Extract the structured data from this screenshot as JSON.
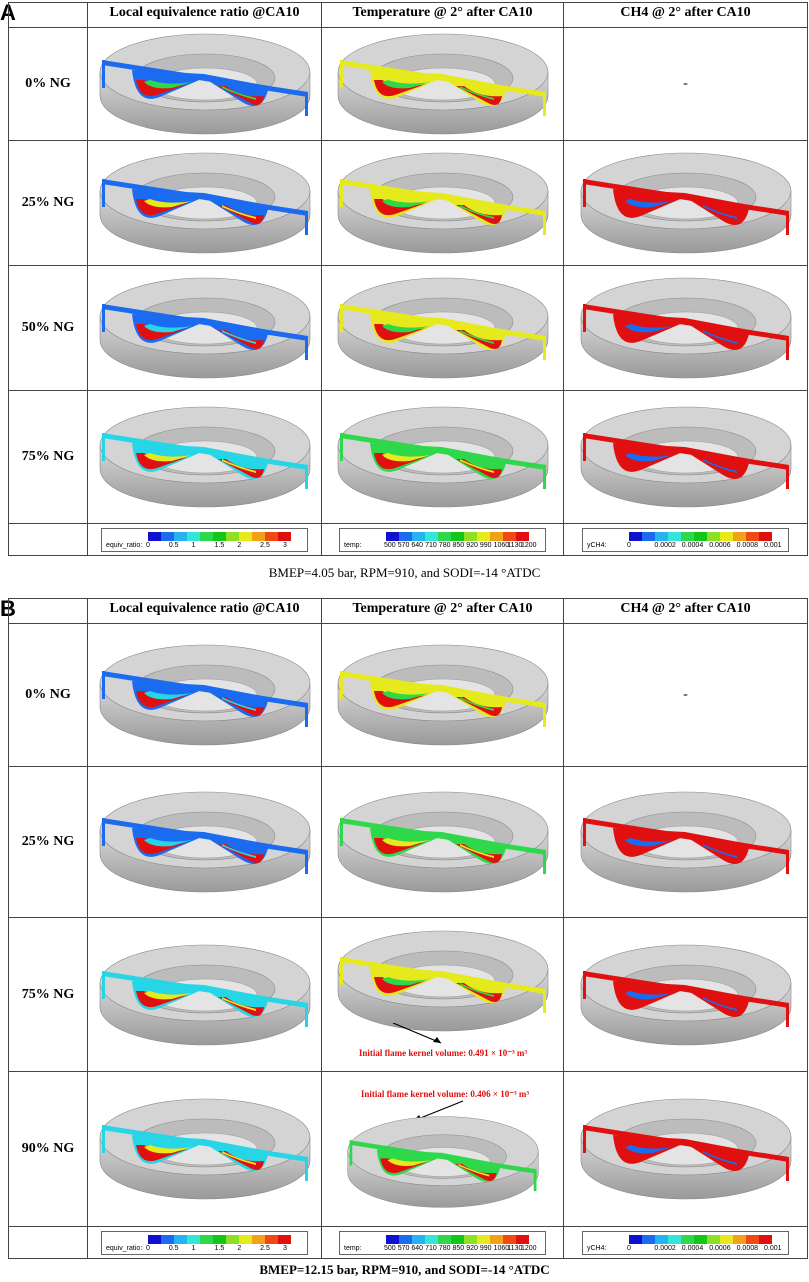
{
  "panels": [
    {
      "letter": "A",
      "col_headers": [
        "Local equivalence ratio @CA10",
        "Temperature @ 2° after CA10",
        "CH4 @ 2° after CA10"
      ],
      "rows": [
        {
          "label": "0% NG",
          "ch4_placeholder": "-"
        },
        {
          "label": "25% NG"
        },
        {
          "label": "50% NG"
        },
        {
          "label": "75% NG"
        }
      ],
      "caption": "BMEP=4.05 bar, RPM=910, and SODI=-14 °ATDC"
    },
    {
      "letter": "B",
      "col_headers": [
        "Local equivalence ratio @CA10",
        "Temperature @ 2° after CA10",
        "CH4 @ 2° after CA10"
      ],
      "rows": [
        {
          "label": "0% NG",
          "ch4_placeholder": "-"
        },
        {
          "label": "25% NG"
        },
        {
          "label": "75% NG",
          "annotation": "Initial flame kernel volume: 0.491 × 10⁻³ m³"
        },
        {
          "label": "90% NG",
          "annotation": "Initial flame kernel volume: 0.406 × 10⁻³ m³"
        }
      ],
      "caption": "BMEP=12.15 bar, RPM=910, and SODI=-14 °ATDC"
    }
  ],
  "legends": {
    "equiv": {
      "name": "equiv_ratio:",
      "ticks": [
        "0",
        "0.5",
        "1",
        "1.5",
        "2",
        "2.5",
        "3"
      ],
      "colors": [
        "#1010d0",
        "#1a6bef",
        "#26b3f2",
        "#35e6d8",
        "#2ed84a",
        "#12c61a",
        "#8fe025",
        "#e6ea1c",
        "#f2a11a",
        "#f04a12",
        "#e01010"
      ]
    },
    "temp": {
      "name": "temp:",
      "ticks": [
        "500",
        "570",
        "640",
        "710",
        "780",
        "850",
        "920",
        "990",
        "1060",
        "1130",
        "1200"
      ],
      "colors": [
        "#1010d0",
        "#1a6bef",
        "#26b3f2",
        "#35e6d8",
        "#2ed84a",
        "#12c61a",
        "#8fe025",
        "#e6ea1c",
        "#f2a11a",
        "#f04a12",
        "#e01010"
      ]
    },
    "ch4": {
      "name": "yCH4:",
      "ticks": [
        "0",
        "0.0002",
        "0.0004",
        "0.0006",
        "0.0008",
        "0.001"
      ],
      "colors": [
        "#1010d0",
        "#1a6bef",
        "#26b3f2",
        "#35e6d8",
        "#2ed84a",
        "#12c61a",
        "#8fe025",
        "#e6ea1c",
        "#f2a11a",
        "#f04a12",
        "#e01010"
      ]
    }
  },
  "colors": {
    "red": "#e01010",
    "blue": "#1a6bef",
    "cyan": "#26d6e6",
    "yellow": "#e6ea1c",
    "green": "#2ed84a",
    "grey": "#c8c8c8"
  }
}
